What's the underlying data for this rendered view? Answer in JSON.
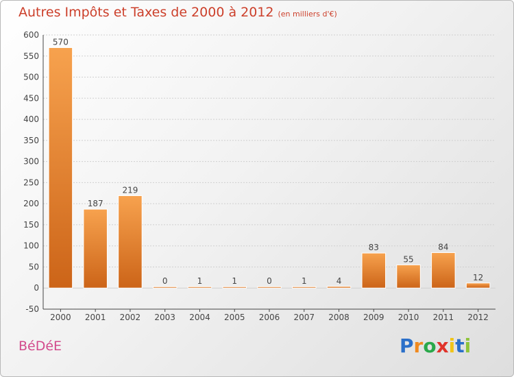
{
  "chart_data": {
    "type": "bar",
    "title": "Autres Impôts et Taxes de 2000 à 2012",
    "subtitle": "(en milliers d'€)",
    "categories": [
      "2000",
      "2001",
      "2002",
      "2003",
      "2004",
      "2005",
      "2006",
      "2007",
      "2008",
      "2009",
      "2010",
      "2011",
      "2012"
    ],
    "values": [
      570,
      187,
      219,
      0,
      1,
      1,
      0,
      1,
      4,
      83,
      55,
      84,
      12
    ],
    "ylim": [
      -50,
      600
    ],
    "yticks": [
      -50,
      0,
      50,
      100,
      150,
      200,
      250,
      300,
      350,
      400,
      450,
      500,
      550,
      600
    ],
    "grid": true,
    "colors": {
      "bar_light": "#f7a24e",
      "bar_dark": "#cc6418",
      "grid": "#cfcfcf",
      "axis": "#444444"
    }
  },
  "town": "BéDéE",
  "brand": {
    "letters": [
      "P",
      "r",
      "o",
      "x",
      "i",
      "t",
      "i"
    ],
    "colors": [
      "#2a6fc9",
      "#f08a1f",
      "#2aa84a",
      "#e0332a",
      "#f0c419",
      "#2a6fc9",
      "#8fc43b"
    ]
  }
}
